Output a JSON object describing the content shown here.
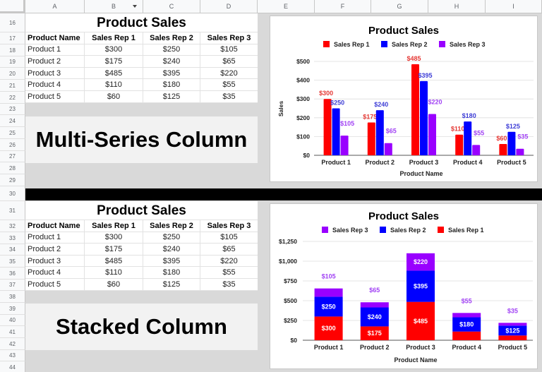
{
  "spreadsheet": {
    "columns": [
      "A",
      "B",
      "C",
      "D",
      "E",
      "F",
      "G",
      "H",
      "I"
    ],
    "rows_top": [
      "16",
      "17",
      "18",
      "19",
      "20",
      "21",
      "22",
      "23",
      "24",
      "25",
      "26",
      "27",
      "28",
      "29"
    ],
    "rows_bottom": [
      "30",
      "31",
      "32",
      "33",
      "34",
      "35",
      "36",
      "37",
      "38",
      "39",
      "40",
      "41",
      "42",
      "43",
      "44"
    ]
  },
  "table_top": {
    "title": "Product Sales",
    "headers": [
      "Product Name",
      "Sales Rep 1",
      "Sales Rep 2",
      "Sales Rep 3"
    ],
    "rows": [
      [
        "Product 1",
        "$300",
        "$250",
        "$105"
      ],
      [
        "Product 2",
        "$175",
        "$240",
        "$65"
      ],
      [
        "Product 3",
        "$485",
        "$395",
        "$220"
      ],
      [
        "Product 4",
        "$110",
        "$180",
        "$55"
      ],
      [
        "Product 5",
        "$60",
        "$125",
        "$35"
      ]
    ]
  },
  "banner_top": "Multi-Series Column",
  "table_bottom": {
    "title": "Product Sales",
    "headers": [
      "Product Name",
      "Sales Rep 1",
      "Sales Rep 2",
      "Sales Rep 3"
    ],
    "rows": [
      [
        "Product 1",
        "$300",
        "$250",
        "$105"
      ],
      [
        "Product 2",
        "$175",
        "$240",
        "$65"
      ],
      [
        "Product 3",
        "$485",
        "$395",
        "$220"
      ],
      [
        "Product 4",
        "$110",
        "$180",
        "$55"
      ],
      [
        "Product 5",
        "$60",
        "$125",
        "$35"
      ]
    ]
  },
  "banner_bottom": "Stacked Column",
  "colors": {
    "rep1": "#ff0000",
    "rep2": "#0000ff",
    "rep3": "#9900ff",
    "rep1_label": "#e53935",
    "rep2_label": "#3d3dd6",
    "rep3_label": "#a142f4"
  },
  "chart_data": [
    {
      "type": "bar",
      "title": "Product Sales",
      "xlabel": "Product Name",
      "ylabel": "Sales",
      "categories": [
        "Product 1",
        "Product 2",
        "Product 3",
        "Product 4",
        "Product 5"
      ],
      "series": [
        {
          "name": "Sales Rep 1",
          "values": [
            300,
            175,
            485,
            110,
            60
          ]
        },
        {
          "name": "Sales Rep 2",
          "values": [
            250,
            240,
            395,
            180,
            125
          ]
        },
        {
          "name": "Sales Rep 3",
          "values": [
            105,
            65,
            220,
            55,
            35
          ]
        }
      ],
      "yticks": [
        "$0",
        "$100",
        "$200",
        "$300",
        "$400",
        "$500"
      ],
      "ylim": [
        0,
        500
      ],
      "legend": [
        "Sales Rep 1",
        "Sales Rep 2",
        "Sales Rep 3"
      ],
      "legend_position": "top",
      "grid": true
    },
    {
      "type": "bar",
      "stacked": true,
      "title": "Product Sales",
      "xlabel": "Product Name",
      "ylabel": "",
      "categories": [
        "Product 1",
        "Product 2",
        "Product 3",
        "Product 4",
        "Product 5"
      ],
      "series": [
        {
          "name": "Sales Rep 1",
          "values": [
            300,
            175,
            485,
            110,
            60
          ]
        },
        {
          "name": "Sales Rep 2",
          "values": [
            250,
            240,
            395,
            180,
            125
          ]
        },
        {
          "name": "Sales Rep 3",
          "values": [
            105,
            65,
            220,
            55,
            35
          ]
        }
      ],
      "yticks": [
        "$0",
        "$250",
        "$500",
        "$750",
        "$1,000",
        "$1,250"
      ],
      "ylim": [
        0,
        1250
      ],
      "legend": [
        "Sales Rep 3",
        "Sales Rep 2",
        "Sales Rep 1"
      ],
      "legend_position": "top",
      "grid": true
    }
  ]
}
